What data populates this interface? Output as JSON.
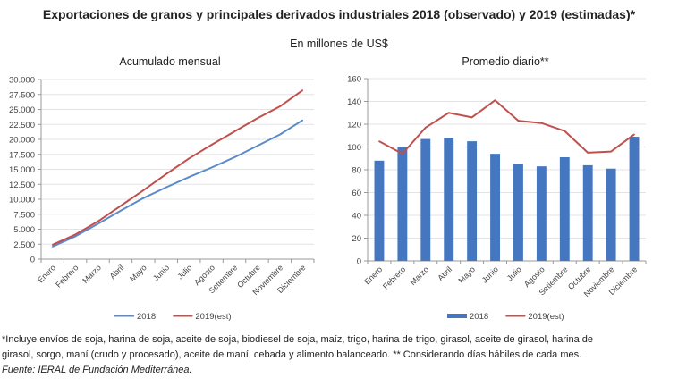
{
  "header": {
    "title": "Exportaciones de granos y principales derivados industriales 2018 (observado) y 2019 (estimadas)*",
    "subtitle": "En millones de US$"
  },
  "chart_data": [
    {
      "type": "line",
      "title": "Acumulado mensual",
      "xlabel": "",
      "ylabel": "",
      "categories": [
        "Enero",
        "Febrero",
        "Marzo",
        "Abril",
        "Mayo",
        "Junio",
        "Julio",
        "Agosto",
        "Setiembre",
        "Octubre",
        "Noviembre",
        "Diciembre"
      ],
      "ylim": [
        0,
        30000
      ],
      "yticks": [
        "0",
        "2.500",
        "5.000",
        "7.500",
        "10.000",
        "12.500",
        "15.000",
        "17.500",
        "20.000",
        "22.500",
        "25.000",
        "27.500",
        "30.000"
      ],
      "grid": true,
      "legend": "bottom",
      "series": [
        {
          "name": "2018",
          "color": "#5B8BC9",
          "values": [
            2100,
            3800,
            5900,
            8100,
            10200,
            12000,
            13700,
            15300,
            17000,
            18900,
            20800,
            23200
          ]
        },
        {
          "name": "2019(est)",
          "color": "#C0504D",
          "values": [
            2400,
            4100,
            6300,
            8900,
            11500,
            14200,
            16800,
            19100,
            21300,
            23500,
            25500,
            28200
          ]
        }
      ]
    },
    {
      "type": "bar",
      "title": "Promedio diario**",
      "xlabel": "",
      "ylabel": "",
      "categories": [
        "Enero",
        "Febrero",
        "Marzo",
        "Abril",
        "Mayo",
        "Junio",
        "Julio",
        "Agosto",
        "Setiembre",
        "Octubre",
        "Noviembre",
        "Diciembre"
      ],
      "ylim": [
        0,
        160
      ],
      "yticks": [
        "0",
        "20",
        "40",
        "60",
        "80",
        "100",
        "120",
        "140",
        "160"
      ],
      "grid": true,
      "legend": "bottom",
      "series": [
        {
          "name": "2018",
          "kind": "bar",
          "color": "#4477C0",
          "values": [
            88,
            100,
            107,
            108,
            105,
            94,
            85,
            83,
            91,
            84,
            81,
            109
          ]
        },
        {
          "name": "2019(est)",
          "kind": "line",
          "color": "#C0504D",
          "values": [
            105,
            94,
            117,
            130,
            126,
            141,
            123,
            121,
            114,
            95,
            96,
            111
          ]
        }
      ]
    }
  ],
  "footer": {
    "note_line1": "*Incluye envíos de soja, harina de soja, aceite de soja, biodiesel de soja, maíz, trigo, harina de trigo, girasol, aceite de girasol, harina de",
    "note_line2": "girasol, sorgo, maní (crudo y procesado), aceite de maní, cebada y alimento balanceado. ** Considerando días hábiles de cada mes.",
    "source": "Fuente: IERAL de Fundación Mediterránea."
  }
}
